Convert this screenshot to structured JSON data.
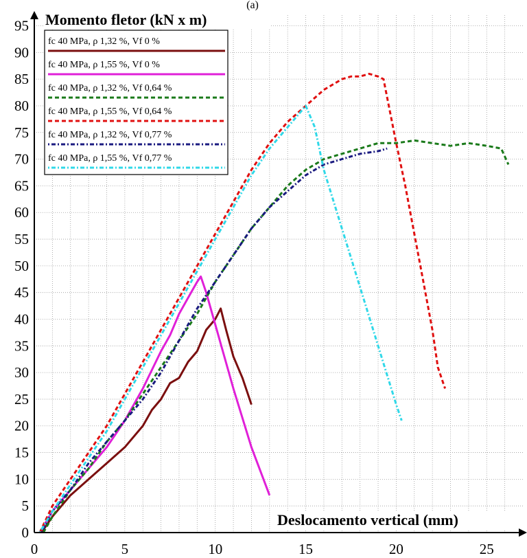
{
  "figure_label": "(a)",
  "chart_data": {
    "type": "line",
    "title": "",
    "xlabel": "Deslocamento vertical (mm)",
    "ylabel": "Momento fletor (kN x m)",
    "xlim": [
      0,
      27
    ],
    "ylim": [
      0,
      97
    ],
    "x_ticks": [
      0,
      5,
      10,
      15,
      20,
      25
    ],
    "y_ticks": [
      0,
      5,
      10,
      15,
      20,
      25,
      30,
      35,
      40,
      45,
      50,
      55,
      60,
      65,
      70,
      75,
      80,
      85,
      90,
      95
    ],
    "grid": true,
    "legend_position": "top-left",
    "series": [
      {
        "name": "fc 40 MPa, ρ 1,32 %, Vf 0 %",
        "color": "#7b0f0f",
        "dash": "solid",
        "x": [
          0.4,
          1.0,
          2.0,
          3.0,
          4.0,
          5.0,
          6.0,
          6.5,
          7.0,
          7.5,
          8.0,
          8.5,
          9.0,
          9.5,
          10.0,
          10.3,
          10.6,
          11.0,
          11.5,
          12.0
        ],
        "y": [
          0,
          3,
          7,
          10,
          13,
          16,
          20,
          23,
          25,
          28,
          29,
          32,
          34,
          38,
          40,
          42,
          38,
          33,
          29,
          24
        ]
      },
      {
        "name": "fc 40 MPa, ρ 1,55 %, Vf 0 %",
        "color": "#e020d8",
        "dash": "solid",
        "x": [
          0.3,
          1.0,
          2.0,
          3.0,
          4.0,
          5.0,
          6.0,
          7.0,
          7.5,
          8.0,
          8.5,
          9.0,
          9.2,
          9.5,
          10.0,
          11.0,
          12.0,
          13.0
        ],
        "y": [
          0,
          4,
          8,
          12,
          16,
          21,
          27,
          34,
          37,
          41,
          44,
          47,
          48,
          45,
          39,
          27,
          16,
          7
        ]
      },
      {
        "name": "fc 40 MPa, ρ 1,32 %, Vf 0,64 %",
        "color": "#1a7a1a",
        "dash": "6 4",
        "x": [
          0.5,
          1.0,
          2.0,
          3.0,
          4.0,
          5.0,
          6.0,
          7.0,
          8.0,
          9.0,
          10.0,
          11.0,
          12.0,
          13.0,
          14.0,
          15.0,
          16.0,
          17.0,
          18.0,
          19.0,
          20.0,
          21.0,
          22.0,
          23.0,
          24.0,
          25.0,
          25.8,
          26.2
        ],
        "y": [
          0,
          3,
          8,
          12,
          17,
          21,
          26,
          31,
          36,
          41,
          47,
          52,
          57,
          61,
          65,
          68,
          70,
          71,
          72,
          73,
          73,
          73.5,
          73,
          72.5,
          73,
          72.5,
          72,
          69
        ]
      },
      {
        "name": "fc 40 MPa, ρ 1,55 %, Vf 0,64 %",
        "color": "#e01010",
        "dash": "6 4",
        "x": [
          0.3,
          1.0,
          2.0,
          3.0,
          4.0,
          5.0,
          6.0,
          7.0,
          8.0,
          9.0,
          10.0,
          11.0,
          12.0,
          13.0,
          14.0,
          15.0,
          16.0,
          17.0,
          17.5,
          18.0,
          18.5,
          19.0,
          19.3,
          20.0,
          20.5,
          21.0,
          21.5,
          22.0,
          22.3,
          22.7
        ],
        "y": [
          0,
          5,
          10,
          15,
          20,
          26,
          32,
          38,
          44,
          50,
          56,
          62,
          68,
          73,
          77,
          80,
          83,
          85,
          85.5,
          85.5,
          86,
          85.5,
          85,
          73,
          65,
          56,
          47,
          38,
          31,
          27
        ]
      },
      {
        "name": "fc 40 MPa, ρ 1,32 %, Vf 0,77 %",
        "color": "#1a1a80",
        "dash": "2 3 6 3",
        "x": [
          0.4,
          1.0,
          2.0,
          3.0,
          4.0,
          5.0,
          6.0,
          7.0,
          8.0,
          9.0,
          10.0,
          11.0,
          12.0,
          13.0,
          14.0,
          15.0,
          16.0,
          17.0,
          18.0,
          19.0,
          19.5
        ],
        "y": [
          0,
          4,
          8,
          13,
          17,
          21,
          25,
          30,
          36,
          42,
          47,
          52,
          57,
          61,
          64,
          67,
          69,
          70,
          71,
          71.5,
          72
        ]
      },
      {
        "name": "fc 40 MPa, ρ 1,55 %, Vf 0,77 %",
        "color": "#30d8e8",
        "dash": "2 3 6 3",
        "x": [
          0.3,
          1.0,
          2.0,
          3.0,
          4.0,
          5.0,
          6.0,
          7.0,
          8.0,
          9.0,
          10.0,
          11.0,
          12.0,
          13.0,
          14.0,
          14.5,
          15.0,
          15.5,
          16.0,
          17.0,
          18.0,
          19.0,
          20.0,
          20.3
        ],
        "y": [
          0,
          4,
          9,
          14,
          19,
          25,
          31,
          37,
          43,
          49,
          55,
          61,
          67,
          72,
          76,
          78,
          80,
          76,
          68,
          57,
          46,
          35,
          24,
          21
        ]
      }
    ]
  }
}
